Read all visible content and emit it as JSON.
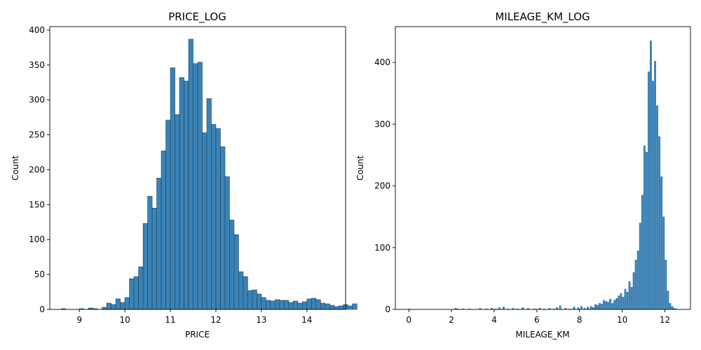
{
  "chart_data": [
    {
      "type": "bar",
      "title": "PRICE_LOG",
      "xlabel": "PRICE",
      "ylabel": "Count",
      "xlim": [
        8.35,
        14.85
      ],
      "ylim": [
        0,
        405
      ],
      "xticks": [
        9,
        10,
        11,
        12,
        13,
        14
      ],
      "yticks": [
        0,
        50,
        100,
        150,
        200,
        250,
        300,
        350,
        400
      ],
      "bin_start": 8.6,
      "bin_width": 0.1,
      "values": [
        1,
        0,
        0,
        0,
        1,
        0,
        2,
        1,
        0,
        3,
        9,
        7,
        15,
        10,
        17,
        44,
        47,
        61,
        123,
        162,
        145,
        188,
        227,
        271,
        346,
        279,
        332,
        327,
        387,
        352,
        354,
        253,
        302,
        265,
        259,
        233,
        190,
        128,
        107,
        54,
        47,
        27,
        28,
        22,
        17,
        13,
        12,
        14,
        13,
        13,
        10,
        12,
        9,
        11,
        15,
        16,
        14,
        9,
        8,
        6,
        4,
        5,
        7,
        5,
        8
      ]
    },
    {
      "type": "bar",
      "title": "MILEAGE_KM_LOG",
      "xlabel": "MILEAGE_KM",
      "ylabel": "Count",
      "xlim": [
        -0.63,
        13.2
      ],
      "ylim": [
        0,
        458
      ],
      "xticks": [
        0,
        2,
        4,
        6,
        8,
        10,
        12
      ],
      "yticks": [
        0,
        100,
        200,
        300,
        400
      ],
      "bins": [
        [
          0,
          1
        ],
        [
          2.15,
          2
        ],
        [
          2.25,
          1
        ],
        [
          2.5,
          1
        ],
        [
          2.8,
          1
        ],
        [
          3.3,
          2
        ],
        [
          3.6,
          1
        ],
        [
          3.85,
          2
        ],
        [
          4.05,
          1
        ],
        [
          4.2,
          3
        ],
        [
          4.4,
          4
        ],
        [
          4.6,
          1
        ],
        [
          4.85,
          2
        ],
        [
          5.05,
          1
        ],
        [
          5.3,
          3
        ],
        [
          5.55,
          2
        ],
        [
          5.85,
          1
        ],
        [
          6.1,
          2
        ],
        [
          6.3,
          1
        ],
        [
          6.55,
          2
        ],
        [
          6.75,
          1
        ],
        [
          6.9,
          3
        ],
        [
          7.05,
          6
        ],
        [
          7.3,
          2
        ],
        [
          7.5,
          1
        ],
        [
          7.7,
          4
        ],
        [
          7.9,
          3
        ],
        [
          8.05,
          5
        ],
        [
          8.2,
          2
        ],
        [
          8.35,
          4
        ],
        [
          8.5,
          5
        ],
        [
          8.6,
          3
        ],
        [
          8.7,
          8
        ],
        [
          8.8,
          7
        ],
        [
          8.9,
          10
        ],
        [
          9.0,
          9
        ],
        [
          9.1,
          15
        ],
        [
          9.2,
          13
        ],
        [
          9.3,
          12
        ],
        [
          9.4,
          17
        ],
        [
          9.5,
          10
        ],
        [
          9.6,
          15
        ],
        [
          9.7,
          18
        ],
        [
          9.8,
          22
        ],
        [
          9.9,
          26
        ],
        [
          10.0,
          20
        ],
        [
          10.1,
          33
        ],
        [
          10.2,
          28
        ],
        [
          10.3,
          45
        ],
        [
          10.4,
          36
        ],
        [
          10.5,
          60
        ],
        [
          10.6,
          80
        ],
        [
          10.7,
          95
        ],
        [
          10.8,
          140
        ],
        [
          10.9,
          185
        ],
        [
          11.0,
          265
        ],
        [
          11.1,
          255
        ],
        [
          11.2,
          385
        ],
        [
          11.3,
          435
        ],
        [
          11.4,
          370
        ],
        [
          11.5,
          402
        ],
        [
          11.6,
          330
        ],
        [
          11.7,
          280
        ],
        [
          11.8,
          215
        ],
        [
          11.9,
          150
        ],
        [
          12.0,
          80
        ],
        [
          12.1,
          30
        ],
        [
          12.2,
          10
        ],
        [
          12.3,
          5
        ],
        [
          12.4,
          2
        ],
        [
          12.5,
          1
        ]
      ]
    }
  ]
}
